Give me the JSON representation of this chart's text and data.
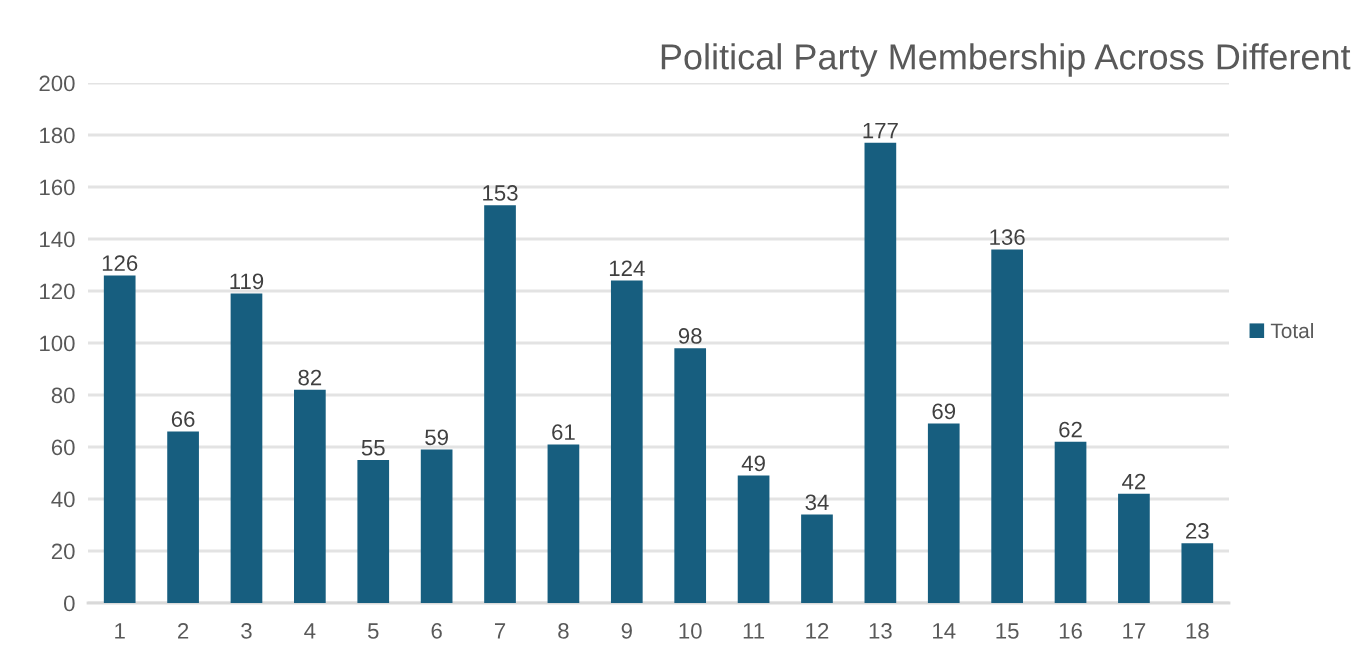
{
  "chart_data": {
    "type": "bar",
    "title": "Political Party Membership Across Different",
    "categories": [
      "1",
      "2",
      "3",
      "4",
      "5",
      "6",
      "7",
      "8",
      "9",
      "10",
      "11",
      "12",
      "13",
      "14",
      "15",
      "16",
      "17",
      "18"
    ],
    "series": [
      {
        "name": "Total",
        "color": "#175e7f",
        "values": [
          126,
          66,
          119,
          82,
          55,
          59,
          153,
          61,
          124,
          98,
          49,
          34,
          177,
          69,
          136,
          62,
          42,
          23
        ]
      }
    ],
    "ylim": [
      0,
      200
    ],
    "yticks": [
      0,
      20,
      40,
      60,
      80,
      100,
      120,
      140,
      160,
      180,
      200
    ],
    "grid": "y",
    "legend": "right",
    "data_labels": true
  }
}
